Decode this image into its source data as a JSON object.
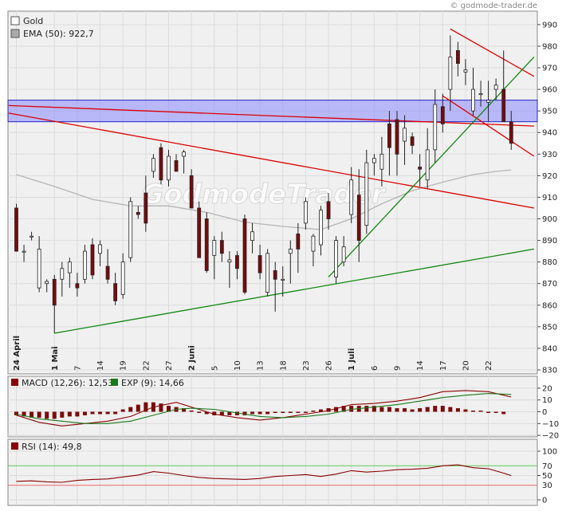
{
  "watermark": "GodmodeTrader",
  "copyright": "© godmode-trader.de",
  "chart_data": [
    {
      "type": "candlestick",
      "legend": [
        {
          "label": "Gold",
          "color": "#ffffff"
        },
        {
          "label": "EMA (50): 922,7",
          "color": "#aaaaaa"
        }
      ],
      "ylim": [
        830,
        992
      ],
      "y_ticks": [
        830,
        840,
        850,
        860,
        870,
        880,
        890,
        900,
        910,
        920,
        930,
        940,
        950,
        960,
        970,
        980,
        990
      ],
      "x_tick_labels": [
        {
          "i": 0,
          "label": "24 April",
          "bold": true
        },
        {
          "i": 5,
          "label": "1 Mai",
          "bold": true
        },
        {
          "i": 8,
          "label": "7"
        },
        {
          "i": 11,
          "label": "14"
        },
        {
          "i": 14,
          "label": "19"
        },
        {
          "i": 17,
          "label": "22"
        },
        {
          "i": 20,
          "label": "27"
        },
        {
          "i": 23,
          "label": "2 Juni",
          "bold": true
        },
        {
          "i": 26,
          "label": "5"
        },
        {
          "i": 29,
          "label": "10"
        },
        {
          "i": 32,
          "label": "13"
        },
        {
          "i": 35,
          "label": "18"
        },
        {
          "i": 38,
          "label": "23"
        },
        {
          "i": 41,
          "label": "26"
        },
        {
          "i": 44,
          "label": "1 Juli",
          "bold": true
        },
        {
          "i": 47,
          "label": "6"
        },
        {
          "i": 50,
          "label": "9"
        },
        {
          "i": 53,
          "label": "14"
        },
        {
          "i": 56,
          "label": "17"
        },
        {
          "i": 59,
          "label": "20"
        },
        {
          "i": 62,
          "label": "22"
        }
      ],
      "candles": [
        [
          905,
          907,
          885,
          885
        ],
        [
          885,
          888,
          880,
          885
        ],
        [
          892,
          894,
          890,
          892
        ],
        [
          868,
          892,
          866,
          886
        ],
        [
          870,
          872,
          866,
          871
        ],
        [
          872,
          874,
          847,
          860
        ],
        [
          872,
          880,
          864,
          877
        ],
        [
          875,
          882,
          868,
          880
        ],
        [
          870,
          875,
          864,
          868
        ],
        [
          872,
          888,
          870,
          885
        ],
        [
          888,
          891,
          872,
          874
        ],
        [
          884,
          890,
          878,
          888
        ],
        [
          878,
          886,
          870,
          872
        ],
        [
          870,
          875,
          860,
          862
        ],
        [
          865,
          884,
          863,
          880
        ],
        [
          882,
          910,
          880,
          908
        ],
        [
          903,
          906,
          900,
          902
        ],
        [
          912,
          920,
          894,
          898
        ],
        [
          922,
          930,
          919,
          928
        ],
        [
          933,
          935,
          916,
          918
        ],
        [
          918,
          932,
          915,
          929
        ],
        [
          927,
          930,
          922,
          922
        ],
        [
          929,
          932,
          921,
          931
        ],
        [
          920,
          923,
          905,
          905
        ],
        [
          905,
          908,
          882,
          882
        ],
        [
          900,
          903,
          875,
          876
        ],
        [
          883,
          892,
          872,
          890
        ],
        [
          890,
          894,
          880,
          884
        ],
        [
          880,
          885,
          868,
          881
        ],
        [
          883,
          885,
          872,
          877
        ],
        [
          900,
          902,
          865,
          866
        ],
        [
          890,
          898,
          884,
          894
        ],
        [
          883,
          888,
          872,
          875
        ],
        [
          866,
          886,
          864,
          884
        ],
        [
          876,
          880,
          857,
          872
        ],
        [
          872,
          878,
          864,
          872
        ],
        [
          884,
          890,
          870,
          886
        ],
        [
          893,
          898,
          875,
          886
        ],
        [
          898,
          910,
          895,
          908
        ],
        [
          885,
          893,
          878,
          892
        ],
        [
          888,
          906,
          883,
          904
        ],
        [
          908,
          912,
          895,
          900
        ],
        [
          873,
          892,
          870,
          890
        ],
        [
          880,
          892,
          878,
          887
        ],
        [
          902,
          924,
          898,
          918
        ],
        [
          911,
          923,
          880,
          890
        ],
        [
          897,
          932,
          893,
          926
        ],
        [
          926,
          930,
          920,
          928
        ],
        [
          923,
          938,
          915,
          930
        ],
        [
          944,
          950,
          920,
          933
        ],
        [
          946,
          950,
          920,
          930
        ],
        [
          936,
          948,
          925,
          942
        ],
        [
          938,
          940,
          930,
          934
        ],
        [
          924,
          930,
          915,
          923
        ],
        [
          918,
          942,
          914,
          932
        ],
        [
          932,
          960,
          926,
          953
        ],
        [
          952,
          958,
          940,
          944
        ],
        [
          960,
          985,
          950,
          975
        ],
        [
          978,
          982,
          966,
          972
        ],
        [
          968,
          974,
          962,
          969
        ],
        [
          950,
          970,
          948,
          960
        ],
        [
          958,
          964,
          952,
          958
        ],
        [
          954,
          964,
          945,
          955
        ],
        [
          960,
          965,
          955,
          962
        ],
        [
          960,
          978,
          945,
          945
        ],
        [
          945,
          950,
          932,
          935
        ]
      ],
      "ema_50": [
        [
          0,
          920.5
        ],
        [
          5,
          915
        ],
        [
          10,
          909
        ],
        [
          15,
          906
        ],
        [
          20,
          906
        ],
        [
          25,
          903
        ],
        [
          30,
          898.5
        ],
        [
          35,
          896.5
        ],
        [
          40,
          895
        ],
        [
          44,
          900
        ],
        [
          48,
          907
        ],
        [
          52,
          913
        ],
        [
          56,
          917
        ],
        [
          60,
          920.5
        ],
        [
          63,
          922
        ],
        [
          65,
          922.7
        ]
      ],
      "zone": [
        945,
        955
      ],
      "trend_lines": [
        {
          "color": "#dd0000",
          "points": [
            [
              -1,
              949
            ],
            [
              68,
              905
            ]
          ]
        },
        {
          "color": "#dd0000",
          "points": [
            [
              -1,
              952.5
            ],
            [
              68,
              943
            ]
          ]
        },
        {
          "color": "#dd0000",
          "points": [
            [
              57,
              988
            ],
            [
              68,
              966
            ]
          ]
        },
        {
          "color": "#dd0000",
          "points": [
            [
              56,
              957
            ],
            [
              68,
              929
            ]
          ]
        },
        {
          "color": "#118811",
          "points": [
            [
              5,
              847
            ],
            [
              68,
              886
            ]
          ]
        },
        {
          "color": "#118811",
          "points": [
            [
              41,
              873
            ],
            [
              68,
              975
            ]
          ]
        }
      ]
    },
    {
      "type": "line",
      "legend": [
        {
          "label": "MACD (12,26): 12,53",
          "color": "#8b0000"
        },
        {
          "label": "EXP (9): 14,66",
          "color": "#1a7a1a"
        }
      ],
      "ylim": [
        -24,
        24
      ],
      "y_ticks": [
        20,
        10,
        0,
        -10,
        -20
      ],
      "macd": [
        [
          0,
          -3
        ],
        [
          3,
          -9
        ],
        [
          6,
          -12
        ],
        [
          9,
          -10
        ],
        [
          12,
          -8
        ],
        [
          15,
          -4
        ],
        [
          18,
          4
        ],
        [
          21,
          8
        ],
        [
          23,
          4
        ],
        [
          26,
          -2
        ],
        [
          29,
          -5
        ],
        [
          32,
          -7
        ],
        [
          35,
          -5
        ],
        [
          38,
          -2
        ],
        [
          41,
          1
        ],
        [
          44,
          6
        ],
        [
          47,
          7
        ],
        [
          50,
          9
        ],
        [
          53,
          12
        ],
        [
          56,
          17
        ],
        [
          59,
          18
        ],
        [
          62,
          17
        ],
        [
          65,
          12.5
        ]
      ],
      "exp": [
        [
          0,
          -2
        ],
        [
          3,
          -6
        ],
        [
          6,
          -8
        ],
        [
          9,
          -10
        ],
        [
          12,
          -10
        ],
        [
          15,
          -8
        ],
        [
          18,
          -3
        ],
        [
          21,
          2
        ],
        [
          23,
          3
        ],
        [
          26,
          2
        ],
        [
          29,
          -1
        ],
        [
          32,
          -4
        ],
        [
          35,
          -5
        ],
        [
          38,
          -4
        ],
        [
          41,
          -2
        ],
        [
          44,
          2
        ],
        [
          47,
          4
        ],
        [
          50,
          6
        ],
        [
          53,
          9
        ],
        [
          56,
          12
        ],
        [
          59,
          14
        ],
        [
          62,
          15.5
        ],
        [
          65,
          14.66
        ]
      ],
      "histogram": [
        -3,
        -4,
        -5,
        -5,
        -6,
        -6,
        -5,
        -4,
        -4,
        -3,
        -2,
        -2,
        -2,
        -2,
        2,
        4,
        6,
        8,
        8,
        7,
        5,
        4,
        3,
        1,
        -1,
        -2,
        -3,
        -3,
        -3,
        -3,
        -3,
        -2,
        -2,
        -2,
        -1,
        -1,
        -1,
        -1,
        0,
        1,
        2,
        3,
        4,
        5,
        5,
        5,
        5,
        5,
        4,
        4,
        3,
        3,
        2,
        3,
        4,
        5,
        5,
        4,
        3,
        2,
        1,
        1,
        0,
        0,
        -2
      ]
    },
    {
      "type": "line",
      "legend": [
        {
          "label": "RSI (14): 49,8",
          "color": "#8b0000"
        }
      ],
      "ylim": [
        0,
        115
      ],
      "y_ticks": [
        100,
        50,
        0
      ],
      "reference_levels": [
        {
          "value": 70,
          "label": "70",
          "color": "#55cc55"
        },
        {
          "value": 30,
          "label": "30",
          "color": "#ee6666"
        }
      ],
      "rsi": [
        [
          0,
          38
        ],
        [
          2,
          39
        ],
        [
          4,
          37
        ],
        [
          6,
          36
        ],
        [
          8,
          40
        ],
        [
          10,
          42
        ],
        [
          12,
          43
        ],
        [
          14,
          47
        ],
        [
          16,
          51
        ],
        [
          18,
          58
        ],
        [
          20,
          55
        ],
        [
          22,
          50
        ],
        [
          24,
          46
        ],
        [
          26,
          44
        ],
        [
          28,
          43
        ],
        [
          30,
          42
        ],
        [
          32,
          44
        ],
        [
          34,
          48
        ],
        [
          36,
          50
        ],
        [
          38,
          52
        ],
        [
          40,
          48
        ],
        [
          42,
          53
        ],
        [
          44,
          60
        ],
        [
          46,
          57
        ],
        [
          48,
          59
        ],
        [
          50,
          62
        ],
        [
          52,
          63
        ],
        [
          54,
          65
        ],
        [
          56,
          70
        ],
        [
          58,
          72
        ],
        [
          60,
          66
        ],
        [
          62,
          64
        ],
        [
          64,
          55
        ],
        [
          65,
          49.8
        ]
      ]
    }
  ]
}
